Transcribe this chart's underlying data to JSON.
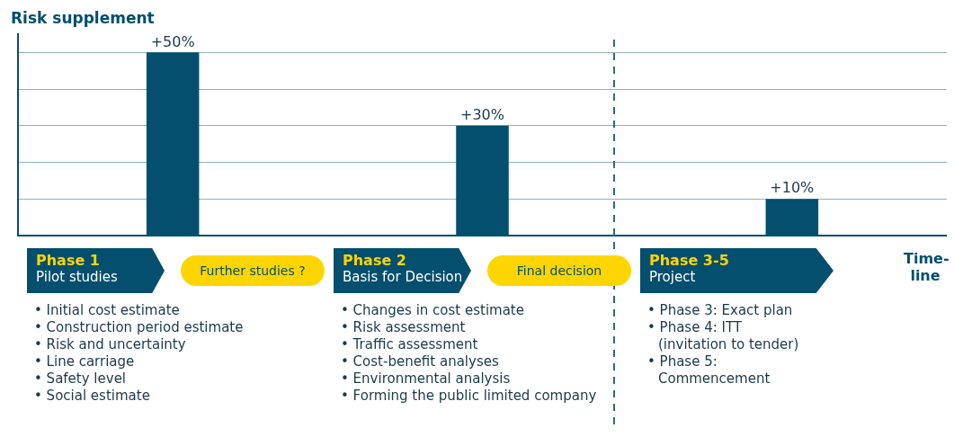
{
  "chart_data": {
    "type": "bar",
    "ylabel": "Risk supplement",
    "xlabel": "Time-line",
    "categories": [
      "Phase 1\nPilot studies",
      "Phase 2\nBasis for Decision",
      "Phase 3-5\nProject"
    ],
    "values": [
      50,
      30,
      10
    ],
    "color": "#034f6d",
    "value_labels": [
      "+50%",
      "+30%",
      "+10%"
    ],
    "ylim": [
      0,
      55
    ],
    "yticks": [
      {
        "value": 0,
        "label": null
      },
      {
        "value": 10,
        "label": null
      },
      {
        "value": 20,
        "label": null
      },
      {
        "value": 30,
        "label": null
      },
      {
        "value": 40,
        "label": null
      },
      {
        "value": 50,
        "label": null
      }
    ],
    "tick_labels": false,
    "grid": "y",
    "annotations": [
      "Further studies ?",
      "Final decision",
      "• Initial cost estimate",
      "• Construction period estimate",
      "• Risk and uncertainty",
      "• Line carriage",
      "• Safety level",
      "• Social estimate",
      "• Changes in cost estimate",
      "• Risk assessment",
      "• Traffic assessment",
      "• Cost-benefit analyses",
      "• Environmental analysis",
      "• Forming the public limited company",
      "• Phase 3: Exact plan",
      "• Phase 4: ITT (invitation to tender)",
      "• Phase 5: Commencement"
    ]
  }
}
